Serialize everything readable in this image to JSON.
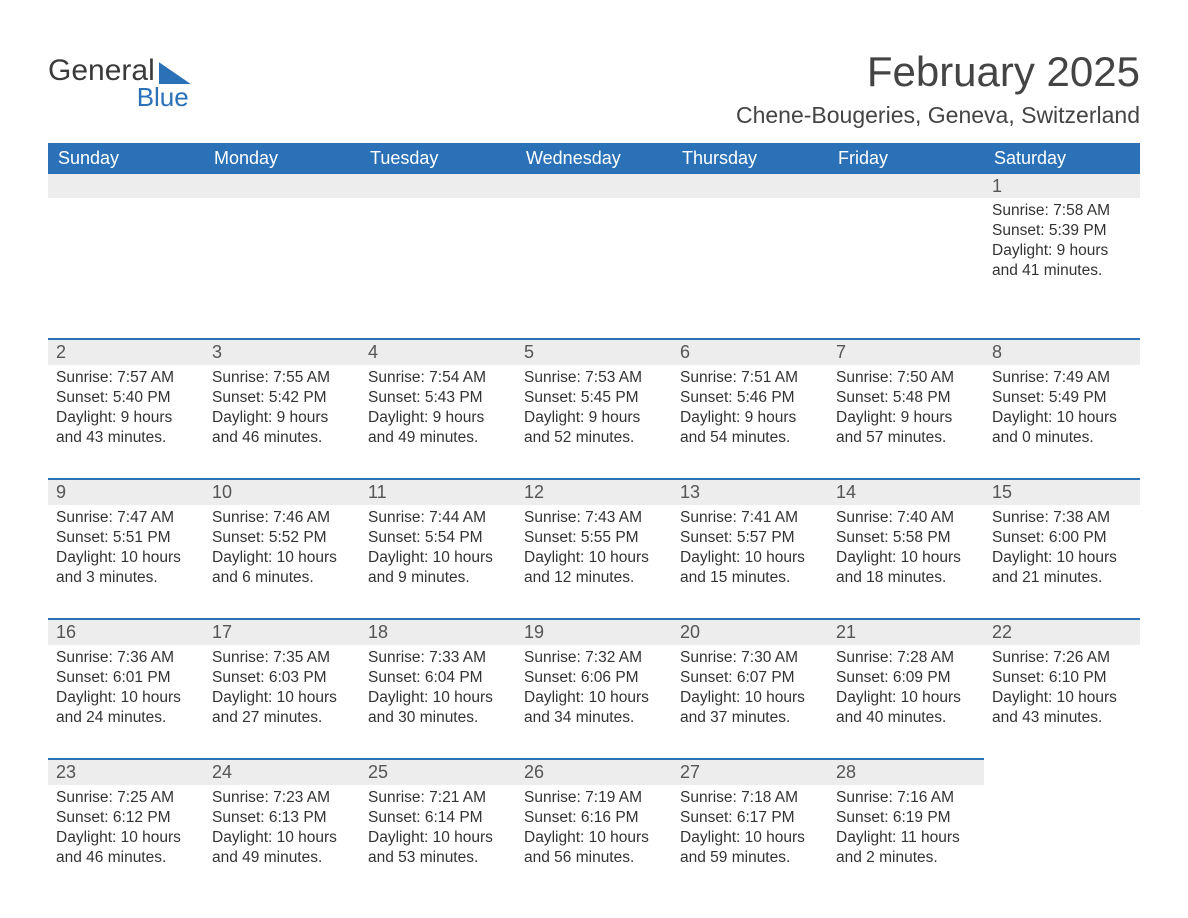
{
  "logo": {
    "text1": "General",
    "text2": "Blue"
  },
  "title": "February 2025",
  "location": "Chene-Bougeries, Geneva, Switzerland",
  "colors": {
    "header_bg": "#2a71b8",
    "header_text": "#ffffff",
    "daynum_bg": "#ededed",
    "border_top": "#2a71b8",
    "body_text": "#333333",
    "title_text": "#444444",
    "page_bg": "#ffffff"
  },
  "typography": {
    "title_fontsize": 42,
    "location_fontsize": 23,
    "weekday_fontsize": 18,
    "daynum_fontsize": 18,
    "content_fontsize": 15.5
  },
  "weekdays": [
    "Sunday",
    "Monday",
    "Tuesday",
    "Wednesday",
    "Thursday",
    "Friday",
    "Saturday"
  ],
  "weeks": [
    [
      null,
      null,
      null,
      null,
      null,
      null,
      {
        "n": "1",
        "sunrise": "Sunrise: 7:58 AM",
        "sunset": "Sunset: 5:39 PM",
        "daylight": "Daylight: 9 hours and 41 minutes."
      }
    ],
    [
      {
        "n": "2",
        "sunrise": "Sunrise: 7:57 AM",
        "sunset": "Sunset: 5:40 PM",
        "daylight": "Daylight: 9 hours and 43 minutes."
      },
      {
        "n": "3",
        "sunrise": "Sunrise: 7:55 AM",
        "sunset": "Sunset: 5:42 PM",
        "daylight": "Daylight: 9 hours and 46 minutes."
      },
      {
        "n": "4",
        "sunrise": "Sunrise: 7:54 AM",
        "sunset": "Sunset: 5:43 PM",
        "daylight": "Daylight: 9 hours and 49 minutes."
      },
      {
        "n": "5",
        "sunrise": "Sunrise: 7:53 AM",
        "sunset": "Sunset: 5:45 PM",
        "daylight": "Daylight: 9 hours and 52 minutes."
      },
      {
        "n": "6",
        "sunrise": "Sunrise: 7:51 AM",
        "sunset": "Sunset: 5:46 PM",
        "daylight": "Daylight: 9 hours and 54 minutes."
      },
      {
        "n": "7",
        "sunrise": "Sunrise: 7:50 AM",
        "sunset": "Sunset: 5:48 PM",
        "daylight": "Daylight: 9 hours and 57 minutes."
      },
      {
        "n": "8",
        "sunrise": "Sunrise: 7:49 AM",
        "sunset": "Sunset: 5:49 PM",
        "daylight": "Daylight: 10 hours and 0 minutes."
      }
    ],
    [
      {
        "n": "9",
        "sunrise": "Sunrise: 7:47 AM",
        "sunset": "Sunset: 5:51 PM",
        "daylight": "Daylight: 10 hours and 3 minutes."
      },
      {
        "n": "10",
        "sunrise": "Sunrise: 7:46 AM",
        "sunset": "Sunset: 5:52 PM",
        "daylight": "Daylight: 10 hours and 6 minutes."
      },
      {
        "n": "11",
        "sunrise": "Sunrise: 7:44 AM",
        "sunset": "Sunset: 5:54 PM",
        "daylight": "Daylight: 10 hours and 9 minutes."
      },
      {
        "n": "12",
        "sunrise": "Sunrise: 7:43 AM",
        "sunset": "Sunset: 5:55 PM",
        "daylight": "Daylight: 10 hours and 12 minutes."
      },
      {
        "n": "13",
        "sunrise": "Sunrise: 7:41 AM",
        "sunset": "Sunset: 5:57 PM",
        "daylight": "Daylight: 10 hours and 15 minutes."
      },
      {
        "n": "14",
        "sunrise": "Sunrise: 7:40 AM",
        "sunset": "Sunset: 5:58 PM",
        "daylight": "Daylight: 10 hours and 18 minutes."
      },
      {
        "n": "15",
        "sunrise": "Sunrise: 7:38 AM",
        "sunset": "Sunset: 6:00 PM",
        "daylight": "Daylight: 10 hours and 21 minutes."
      }
    ],
    [
      {
        "n": "16",
        "sunrise": "Sunrise: 7:36 AM",
        "sunset": "Sunset: 6:01 PM",
        "daylight": "Daylight: 10 hours and 24 minutes."
      },
      {
        "n": "17",
        "sunrise": "Sunrise: 7:35 AM",
        "sunset": "Sunset: 6:03 PM",
        "daylight": "Daylight: 10 hours and 27 minutes."
      },
      {
        "n": "18",
        "sunrise": "Sunrise: 7:33 AM",
        "sunset": "Sunset: 6:04 PM",
        "daylight": "Daylight: 10 hours and 30 minutes."
      },
      {
        "n": "19",
        "sunrise": "Sunrise: 7:32 AM",
        "sunset": "Sunset: 6:06 PM",
        "daylight": "Daylight: 10 hours and 34 minutes."
      },
      {
        "n": "20",
        "sunrise": "Sunrise: 7:30 AM",
        "sunset": "Sunset: 6:07 PM",
        "daylight": "Daylight: 10 hours and 37 minutes."
      },
      {
        "n": "21",
        "sunrise": "Sunrise: 7:28 AM",
        "sunset": "Sunset: 6:09 PM",
        "daylight": "Daylight: 10 hours and 40 minutes."
      },
      {
        "n": "22",
        "sunrise": "Sunrise: 7:26 AM",
        "sunset": "Sunset: 6:10 PM",
        "daylight": "Daylight: 10 hours and 43 minutes."
      }
    ],
    [
      {
        "n": "23",
        "sunrise": "Sunrise: 7:25 AM",
        "sunset": "Sunset: 6:12 PM",
        "daylight": "Daylight: 10 hours and 46 minutes."
      },
      {
        "n": "24",
        "sunrise": "Sunrise: 7:23 AM",
        "sunset": "Sunset: 6:13 PM",
        "daylight": "Daylight: 10 hours and 49 minutes."
      },
      {
        "n": "25",
        "sunrise": "Sunrise: 7:21 AM",
        "sunset": "Sunset: 6:14 PM",
        "daylight": "Daylight: 10 hours and 53 minutes."
      },
      {
        "n": "26",
        "sunrise": "Sunrise: 7:19 AM",
        "sunset": "Sunset: 6:16 PM",
        "daylight": "Daylight: 10 hours and 56 minutes."
      },
      {
        "n": "27",
        "sunrise": "Sunrise: 7:18 AM",
        "sunset": "Sunset: 6:17 PM",
        "daylight": "Daylight: 10 hours and 59 minutes."
      },
      {
        "n": "28",
        "sunrise": "Sunrise: 7:16 AM",
        "sunset": "Sunset: 6:19 PM",
        "daylight": "Daylight: 11 hours and 2 minutes."
      },
      null
    ]
  ]
}
